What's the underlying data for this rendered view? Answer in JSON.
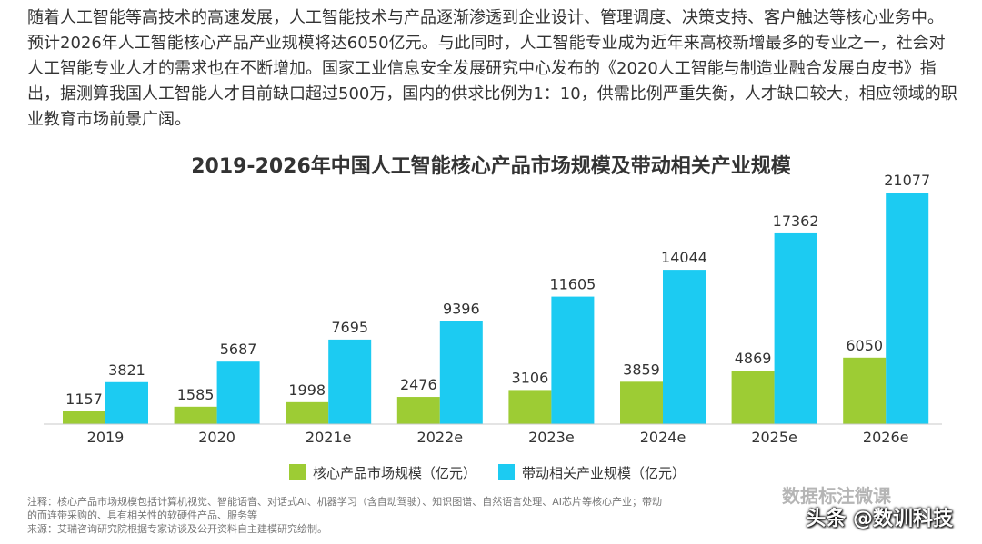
{
  "paragraph": "随着人工智能等高技术的高速发展，人工智能技术与产品逐渐渗透到企业设计、管理调度、决策支持、客户触达等核心业务中。预计2026年人工智能核心产品产业规模将达6050亿元。与此同时，人工智能专业成为近年来高校新增最多的专业之一，社会对人工智能专业人才的需求也在不断增加。国家工业信息安全发展研究中心发布的《2020人工智能与制造业融合发展白皮书》指出，据测算我国人工智能人才目前缺口超过500万，国内的供求比例为1：10，供需比例严重失衡，人才缺口较大，相应领域的职业教育市场前景广阔。",
  "chart_data": {
    "type": "bar",
    "title": "2019-2026年中国人工智能核心产品市场规模及带动相关产业规模",
    "categories": [
      "2019",
      "2020",
      "2021e",
      "2022e",
      "2023e",
      "2024e",
      "2025e",
      "2026e"
    ],
    "series": [
      {
        "name": "核心产品市场规模（亿元）",
        "color": "#9dcc34",
        "values": [
          1157,
          1585,
          1998,
          2476,
          3106,
          3859,
          4869,
          6050
        ]
      },
      {
        "name": "带动相关产业规模（亿元）",
        "color": "#1ccbf2",
        "values": [
          3821,
          5687,
          7695,
          9396,
          11605,
          14044,
          17362,
          21077
        ]
      }
    ],
    "ylim": [
      0,
      22000
    ],
    "grid": false,
    "legend": "bottom-center",
    "show_data_labels": true
  },
  "notes": {
    "line1": "注释：核心产品市场规模包括计算机视觉、智能语音、对话式AI、机器学习（含自动驾驶）、知识图谱、自然语言处理、AI芯片等核心产业；带动",
    "line2": "的而连带采购的、具有相关性的软硬件产品、服务等",
    "source": "来源：艾瑞咨询研究院根据专家访谈及公开资料自主建模研究绘制。"
  },
  "watermark": {
    "faint": "数据标注微课",
    "main": "头条 @数训科技"
  }
}
